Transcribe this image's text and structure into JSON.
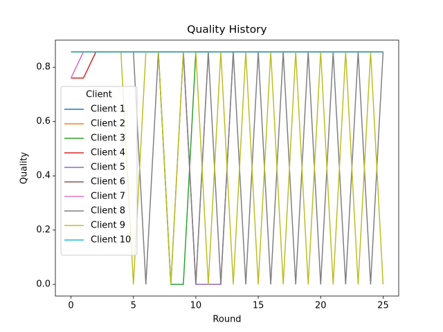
{
  "chart_data": {
    "type": "line",
    "title": "Quality History",
    "xlabel": "Round",
    "ylabel": "Quality",
    "x": [
      0,
      1,
      2,
      3,
      4,
      5,
      6,
      7,
      8,
      9,
      10,
      11,
      12,
      13,
      14,
      15,
      16,
      17,
      18,
      19,
      20,
      21,
      22,
      23,
      24,
      25
    ],
    "xlim": [
      -1.25,
      26.25
    ],
    "ylim": [
      -0.0429,
      0.9
    ],
    "xticks": [
      0,
      5,
      10,
      15,
      20,
      25
    ],
    "yticks": [
      {
        "value": 0,
        "label": "0.0"
      },
      0.2,
      0.4,
      0.6,
      0.8
    ],
    "legend_title": "Client",
    "legend": "upper left",
    "series": [
      {
        "name": "Client 1",
        "color": "#1f77b4",
        "values": [
          0.857,
          0.857,
          0.857,
          0.857,
          0.857,
          0.857,
          0.857,
          0.857,
          0.857,
          0.857,
          0.857,
          0.857,
          0.857,
          0.857,
          0.857,
          0.857,
          0.857,
          0.857,
          0.857,
          0.857,
          0.857,
          0.857,
          0.857,
          0.857,
          0.857,
          0.857
        ]
      },
      {
        "name": "Client 2",
        "color": "#ff7f0e",
        "values": [
          0.857,
          0.857,
          0.857,
          0.857,
          0.857,
          0.857,
          0.857,
          0.857,
          0.857,
          0.857,
          0.857,
          0.857,
          0.857,
          0.857,
          0.857,
          0.857,
          0.857,
          0.857,
          0.857,
          0.857,
          0.857,
          0.857,
          0.857,
          0.857,
          0.857,
          0.857
        ]
      },
      {
        "name": "Client 3",
        "color": "#2ca02c",
        "values": [
          0.857,
          0.857,
          0.857,
          0.857,
          0.857,
          0.857,
          0.857,
          0.857,
          0,
          0,
          0.857,
          0.857,
          0.857,
          0.857,
          0.857,
          0.857,
          0.857,
          0.857,
          0.857,
          0.857,
          0.857,
          0.857,
          0.857,
          0.857,
          0.857,
          0.857
        ]
      },
      {
        "name": "Client 4",
        "color": "#d62728",
        "values": [
          0.76,
          0.76,
          0.857,
          0.857,
          0.857,
          0.857,
          0.857,
          0.857,
          0.857,
          0.857,
          0.857,
          0.857,
          0.857,
          0.857,
          0.857,
          0.857,
          0.857,
          0.857,
          0.857,
          0.857,
          0.857,
          0.857,
          0.857,
          0.857,
          0.857,
          0.857
        ]
      },
      {
        "name": "Client 5",
        "color": "#9467bd",
        "values": [
          0.76,
          0.857,
          0.857,
          0.857,
          0.857,
          0.857,
          0.857,
          0.857,
          0.857,
          0.857,
          0,
          0,
          0,
          0.857,
          0.857,
          0.857,
          0.857,
          0.857,
          0.857,
          0.857,
          0.857,
          0.857,
          0.857,
          0.857,
          0.857,
          0.857
        ]
      },
      {
        "name": "Client 6",
        "color": "#8c564b",
        "values": [
          0.857,
          0.857,
          0.857,
          0.857,
          0.857,
          0.857,
          0.857,
          0.857,
          0.857,
          0.857,
          0.857,
          0.857,
          0.857,
          0.857,
          0.857,
          0.857,
          0.857,
          0.857,
          0.857,
          0.857,
          0.857,
          0.857,
          0.857,
          0.857,
          0.857,
          0.857
        ]
      },
      {
        "name": "Client 7",
        "color": "#e377c2",
        "values": [
          0.76,
          0.857,
          0.857,
          0.857,
          0.857,
          0.857,
          0.857,
          0.857,
          0.857,
          0.857,
          0,
          0.857,
          0.857,
          0.857,
          0.857,
          0.857,
          0.857,
          0.857,
          0.857,
          0.857,
          0.857,
          0.857,
          0.857,
          0.857,
          0.857,
          0.857
        ]
      },
      {
        "name": "Client 8",
        "color": "#7f7f7f",
        "values": [
          0.857,
          0.857,
          0.857,
          0.857,
          0.857,
          0.857,
          0,
          0.857,
          0,
          0.857,
          0,
          0.857,
          0,
          0.857,
          0,
          0.857,
          0,
          0.857,
          0,
          0.857,
          0,
          0.857,
          0,
          0.857,
          0,
          0.857
        ]
      },
      {
        "name": "Client 9",
        "color": "#bcbd22",
        "values": [
          0.857,
          0.857,
          0.857,
          0.857,
          0.857,
          0,
          0.857,
          0.857,
          0,
          0.857,
          0.857,
          0,
          0.857,
          0,
          0.857,
          0,
          0.857,
          0,
          0.857,
          0,
          0.857,
          0,
          0.857,
          0,
          0.857,
          0
        ]
      },
      {
        "name": "Client 10",
        "color": "#17becf",
        "values": [
          0.857,
          0.857,
          0.857,
          0.857,
          0.857,
          0.857,
          0.857,
          0.857,
          0.857,
          0.857,
          0.857,
          0.857,
          0.857,
          0.857,
          0.857,
          0.857,
          0.857,
          0.857,
          0.857,
          0.857,
          0.857,
          0.857,
          0.857,
          0.857,
          0.857,
          0.857
        ]
      }
    ]
  }
}
